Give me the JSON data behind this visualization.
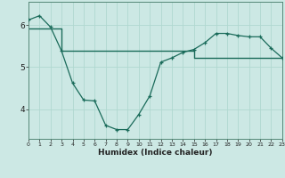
{
  "xlabel": "Humidex (Indice chaleur)",
  "bg_color": "#cce8e4",
  "grid_color": "#b0d8d0",
  "line_color": "#1a6b5a",
  "x_values": [
    0,
    1,
    2,
    3,
    4,
    5,
    6,
    7,
    8,
    9,
    10,
    11,
    12,
    13,
    14,
    15,
    16,
    17,
    18,
    19,
    20,
    21,
    22,
    23
  ],
  "y_curve": [
    6.12,
    6.22,
    5.95,
    5.38,
    4.62,
    4.22,
    4.2,
    3.62,
    3.52,
    3.52,
    3.88,
    4.32,
    5.12,
    5.22,
    5.35,
    5.42,
    5.58,
    5.8,
    5.8,
    5.75,
    5.72,
    5.72,
    5.45,
    5.22
  ],
  "y_step": [
    5.92,
    5.92,
    5.92,
    5.38,
    5.38,
    5.38,
    5.38,
    5.38,
    5.38,
    5.38,
    5.38,
    5.38,
    5.38,
    5.38,
    5.38,
    5.22,
    5.22,
    5.22,
    5.22,
    5.22,
    5.22,
    5.22,
    5.22,
    5.22
  ],
  "ylim": [
    3.3,
    6.55
  ],
  "xlim": [
    0,
    23
  ],
  "yticks": [
    4,
    5,
    6
  ],
  "xticks": [
    0,
    1,
    2,
    3,
    4,
    5,
    6,
    7,
    8,
    9,
    10,
    11,
    12,
    13,
    14,
    15,
    16,
    17,
    18,
    19,
    20,
    21,
    22,
    23
  ]
}
